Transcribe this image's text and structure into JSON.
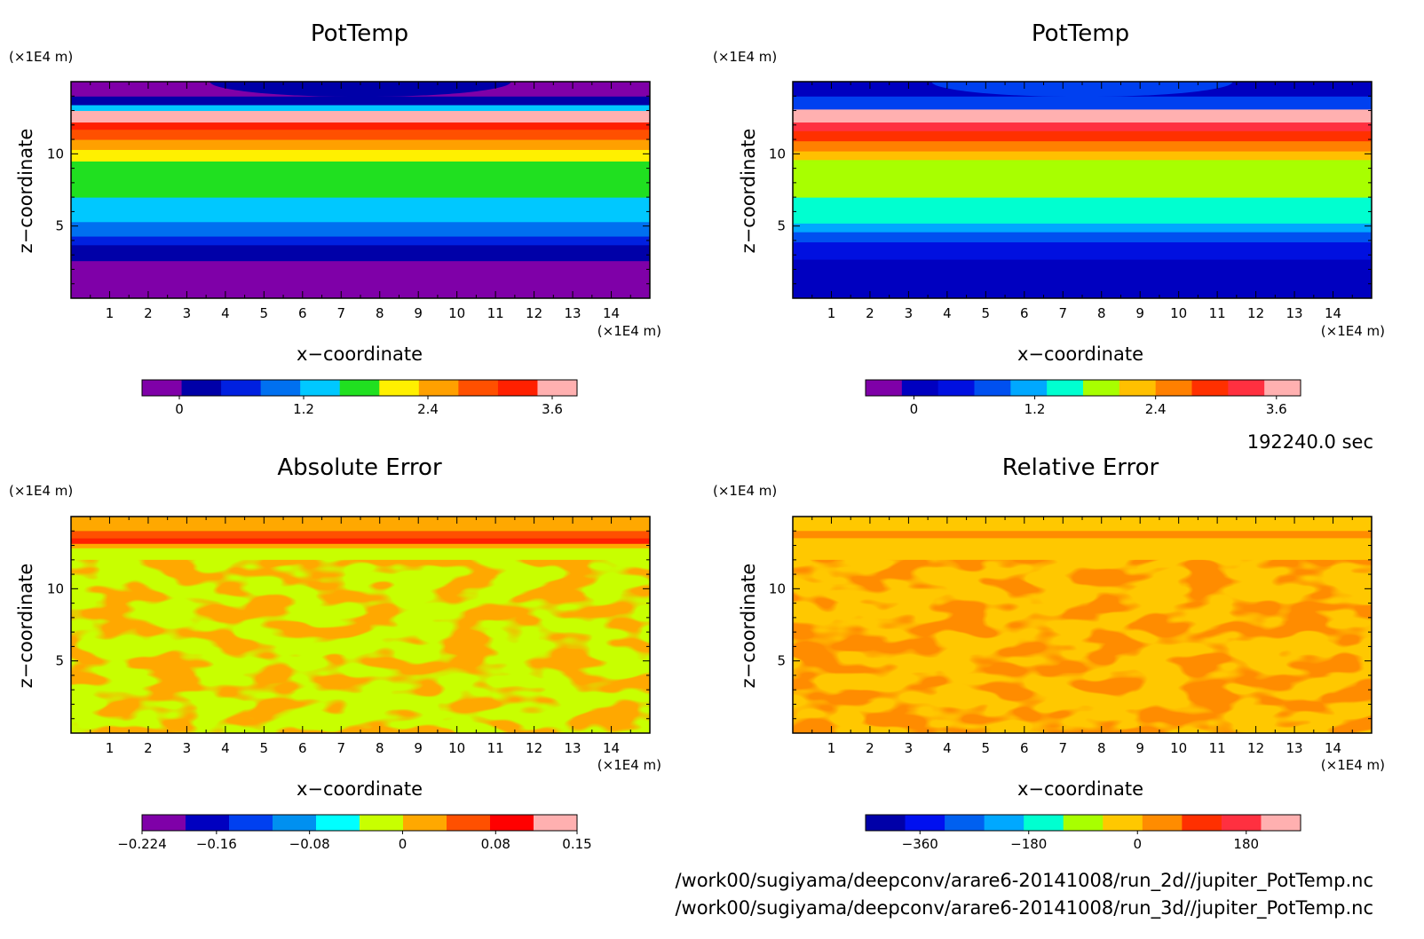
{
  "time_label": "192240.0 sec",
  "file_paths": [
    "/work00/sugiyama/deepconv/arare6-20141008/run_2d//jupiter_PotTemp.nc",
    "/work00/sugiyama/deepconv/arare6-20141008/run_3d//jupiter_PotTemp.nc"
  ],
  "chart_data": [
    {
      "type": "heatmap",
      "title": "PotTemp",
      "xlabel": "x−coordinate",
      "ylabel": "z−coordinate",
      "x_unit": "(×1E4 m)",
      "y_unit": "(×1E4 m)",
      "xlim": [
        0,
        15
      ],
      "ylim": [
        0,
        15
      ],
      "xticks": [
        "1",
        "2",
        "3",
        "4",
        "5",
        "6",
        "7",
        "8",
        "9",
        "10",
        "11",
        "12",
        "13",
        "14"
      ],
      "yticks": [
        "5",
        "10"
      ],
      "bands": [
        {
          "z": [
            0,
            2.6
          ],
          "color": "#7f00a8"
        },
        {
          "z": [
            2.6,
            3.7
          ],
          "color": "#0000a8"
        },
        {
          "z": [
            3.7,
            4.3
          ],
          "color": "#0020e0"
        },
        {
          "z": [
            4.3,
            5.3
          ],
          "color": "#0070f0"
        },
        {
          "z": [
            5.3,
            7.0
          ],
          "color": "#00c8ff"
        },
        {
          "z": [
            7.0,
            9.5
          ],
          "color": "#20e020"
        },
        {
          "z": [
            9.5,
            10.3
          ],
          "color": "#fff000"
        },
        {
          "z": [
            10.3,
            11.0
          ],
          "color": "#ffa000"
        },
        {
          "z": [
            11.0,
            11.7
          ],
          "color": "#ff5000"
        },
        {
          "z": [
            11.7,
            12.2
          ],
          "color": "#ff2000"
        },
        {
          "z": [
            12.2,
            13.0
          ],
          "color": "#ffb0b0"
        },
        {
          "z": [
            13.0,
            13.4
          ],
          "color": "#00c8ff"
        },
        {
          "z": [
            13.4,
            14.0
          ],
          "color": "#0000a8"
        },
        {
          "z": [
            14.0,
            15.0
          ],
          "color": "#7f00a8"
        }
      ],
      "colorbar": {
        "colors": [
          "#7f00a8",
          "#0000a8",
          "#0020e0",
          "#0070f0",
          "#00c8ff",
          "#20e020",
          "#fff000",
          "#ffa000",
          "#ff5000",
          "#ff2000",
          "#ffb0b0"
        ],
        "labels": [
          "0",
          "1.2",
          "2.4",
          "3.6"
        ],
        "label_positions": [
          0.0,
          1.2,
          2.4,
          3.6
        ],
        "range": [
          -0.36,
          3.84
        ]
      }
    },
    {
      "type": "heatmap",
      "title": "PotTemp",
      "xlabel": "x−coordinate",
      "ylabel": "z−coordinate",
      "x_unit": "(×1E4 m)",
      "y_unit": "(×1E4 m)",
      "xlim": [
        0,
        15
      ],
      "ylim": [
        0,
        15
      ],
      "xticks": [
        "1",
        "2",
        "3",
        "4",
        "5",
        "6",
        "7",
        "8",
        "9",
        "10",
        "11",
        "12",
        "13",
        "14"
      ],
      "yticks": [
        "5",
        "10"
      ],
      "bands": [
        {
          "z": [
            0,
            2.7
          ],
          "color": "#0000c0"
        },
        {
          "z": [
            2.7,
            3.9
          ],
          "color": "#0010e0"
        },
        {
          "z": [
            3.9,
            4.6
          ],
          "color": "#0050f0"
        },
        {
          "z": [
            4.6,
            5.2
          ],
          "color": "#00a8ff"
        },
        {
          "z": [
            5.2,
            7.0
          ],
          "color": "#00ffd0"
        },
        {
          "z": [
            7.0,
            9.6
          ],
          "color": "#a8ff00"
        },
        {
          "z": [
            9.6,
            10.2
          ],
          "color": "#ffc000"
        },
        {
          "z": [
            10.2,
            10.9
          ],
          "color": "#ff8000"
        },
        {
          "z": [
            10.9,
            11.6
          ],
          "color": "#ff3000"
        },
        {
          "z": [
            11.6,
            12.2
          ],
          "color": "#ff3040"
        },
        {
          "z": [
            12.2,
            13.1
          ],
          "color": "#ffb0b0"
        },
        {
          "z": [
            13.1,
            14.0
          ],
          "color": "#0040f0"
        },
        {
          "z": [
            14.0,
            15.0
          ],
          "color": "#0000c0"
        }
      ],
      "colorbar": {
        "colors": [
          "#7f00a8",
          "#0000c0",
          "#0010e0",
          "#0050f0",
          "#00a8ff",
          "#00ffd0",
          "#a8ff00",
          "#ffc000",
          "#ff8000",
          "#ff3000",
          "#ff3040",
          "#ffb0b0"
        ],
        "labels": [
          "0",
          "1.2",
          "2.4",
          "3.6"
        ],
        "label_positions": [
          0.0,
          1.2,
          2.4,
          3.6
        ],
        "range": [
          -0.48,
          3.84
        ]
      }
    },
    {
      "type": "heatmap",
      "title": "Absolute Error",
      "xlabel": "x−coordinate",
      "ylabel": "z−coordinate",
      "x_unit": "(×1E4 m)",
      "y_unit": "(×1E4 m)",
      "xlim": [
        0,
        15
      ],
      "ylim": [
        0,
        15
      ],
      "xticks": [
        "1",
        "2",
        "3",
        "4",
        "5",
        "6",
        "7",
        "8",
        "9",
        "10",
        "11",
        "12",
        "13",
        "14"
      ],
      "yticks": [
        "5",
        "10"
      ],
      "background": "#c8ff00",
      "patches_color": "#ffa800",
      "top_stripes": [
        {
          "z": [
            14.0,
            15.0
          ],
          "color": "#ffa800"
        },
        {
          "z": [
            13.5,
            14.0
          ],
          "color": "#ff5000"
        },
        {
          "z": [
            13.1,
            13.5
          ],
          "color": "#ff2000"
        },
        {
          "z": [
            12.8,
            13.1
          ],
          "color": "#ffa800"
        }
      ],
      "colorbar": {
        "colors": [
          "#7f00a8",
          "#0000c0",
          "#0040f0",
          "#0090f0",
          "#00ffff",
          "#c8ff00",
          "#ffa800",
          "#ff5000",
          "#ff0000",
          "#ffb0b0"
        ],
        "labels": [
          "−0.224",
          "−0.16",
          "−0.08",
          "0",
          "0.08",
          "0.15"
        ],
        "label_positions": [
          -0.224,
          -0.16,
          -0.08,
          0.0,
          0.08,
          0.15
        ],
        "range": [
          -0.224,
          0.15
        ]
      }
    },
    {
      "type": "heatmap",
      "title": "Relative Error",
      "xlabel": "x−coordinate",
      "ylabel": "z−coordinate",
      "x_unit": "(×1E4 m)",
      "y_unit": "(×1E4 m)",
      "xlim": [
        0,
        15
      ],
      "ylim": [
        0,
        15
      ],
      "xticks": [
        "1",
        "2",
        "3",
        "4",
        "5",
        "6",
        "7",
        "8",
        "9",
        "10",
        "11",
        "12",
        "13",
        "14"
      ],
      "yticks": [
        "5",
        "10"
      ],
      "background": "#ffc800",
      "patches_color": "#ff8c00",
      "top_stripes": [
        {
          "z": [
            14.0,
            15.0
          ],
          "color": "#ffc800"
        },
        {
          "z": [
            13.5,
            14.0
          ],
          "color": "#ff8c00"
        }
      ],
      "colorbar": {
        "colors": [
          "#0000a8",
          "#0010f0",
          "#0060f0",
          "#00a8ff",
          "#00ffd0",
          "#a8ff00",
          "#ffc800",
          "#ff8c00",
          "#ff3000",
          "#ff3040",
          "#ffb0b0"
        ],
        "labels": [
          "−360",
          "−180",
          "0",
          "180"
        ],
        "label_positions": [
          -360,
          -180,
          0,
          180
        ],
        "range": [
          -450,
          270
        ]
      }
    }
  ]
}
